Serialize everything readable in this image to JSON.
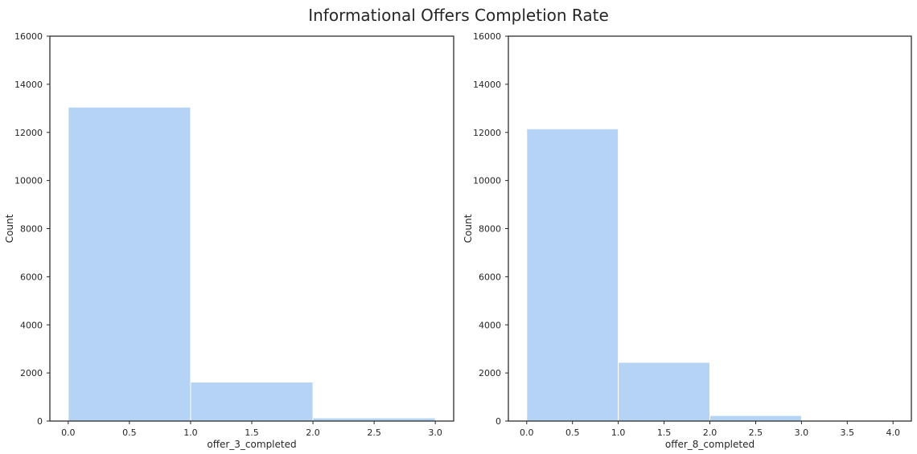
{
  "title": "Informational Offers Completion Rate",
  "colors": {
    "bar": "#b5d3f5",
    "bar_edge": "#ffffff",
    "frame": "#262626",
    "text": "#262626"
  },
  "chart_data": [
    {
      "type": "bar",
      "xlabel": "offer_3_completed",
      "ylabel": "Count",
      "xlim": [
        -0.15,
        3.15
      ],
      "ylim": [
        0,
        16000
      ],
      "xticks": [
        0.0,
        0.5,
        1.0,
        1.5,
        2.0,
        2.5,
        3.0
      ],
      "xtick_labels": [
        "0.0",
        "0.5",
        "1.0",
        "1.5",
        "2.0",
        "2.5",
        "3.0"
      ],
      "yticks": [
        0,
        2000,
        4000,
        6000,
        8000,
        10000,
        12000,
        14000,
        16000
      ],
      "ytick_labels": [
        "0",
        "2000",
        "4000",
        "6000",
        "8000",
        "10000",
        "12000",
        "14000",
        "16000"
      ],
      "bins": [
        [
          0,
          1
        ],
        [
          1,
          2
        ],
        [
          2,
          3
        ]
      ],
      "values": [
        13050,
        1620,
        130
      ],
      "grid": false
    },
    {
      "type": "bar",
      "xlabel": "offer_8_completed",
      "ylabel": "Count",
      "xlim": [
        -0.2,
        4.2
      ],
      "ylim": [
        0,
        16000
      ],
      "xticks": [
        0.0,
        0.5,
        1.0,
        1.5,
        2.0,
        2.5,
        3.0,
        3.5,
        4.0
      ],
      "xtick_labels": [
        "0.0",
        "0.5",
        "1.0",
        "1.5",
        "2.0",
        "2.5",
        "3.0",
        "3.5",
        "4.0"
      ],
      "yticks": [
        0,
        2000,
        4000,
        6000,
        8000,
        10000,
        12000,
        14000,
        16000
      ],
      "ytick_labels": [
        "0",
        "2000",
        "4000",
        "6000",
        "8000",
        "10000",
        "12000",
        "14000",
        "16000"
      ],
      "bins": [
        [
          0,
          1
        ],
        [
          1,
          2
        ],
        [
          2,
          3
        ],
        [
          3,
          4
        ]
      ],
      "values": [
        12150,
        2440,
        230,
        20
      ],
      "grid": false
    }
  ]
}
